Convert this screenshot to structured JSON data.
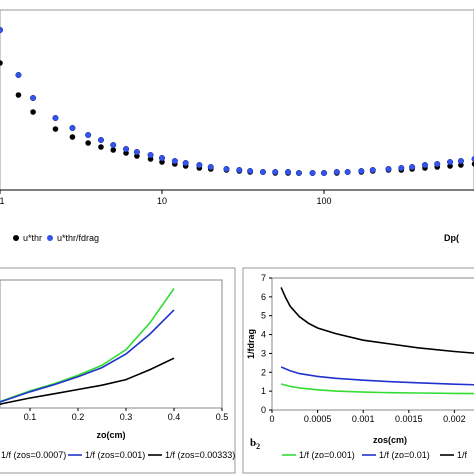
{
  "chart_data": [
    {
      "type": "scatter",
      "x_scale": "log",
      "xlabel": "Dp(",
      "ylabel": "",
      "title": "",
      "xlim": [
        1,
        1000
      ],
      "ylim": [
        0,
        1.8
      ],
      "x_ticks": [
        "1",
        "10",
        "100"
      ],
      "grid": false,
      "legend": "bottom-left",
      "series": [
        {
          "name": "u*thr",
          "color": "#000000",
          "points": [
            [
              1,
              1.27
            ],
            [
              1.3,
              0.95
            ],
            [
              1.6,
              0.78
            ],
            [
              2.2,
              0.61
            ],
            [
              2.8,
              0.53
            ],
            [
              3.5,
              0.47
            ],
            [
              4.2,
              0.43
            ],
            [
              5,
              0.4
            ],
            [
              6,
              0.37
            ],
            [
              7,
              0.34
            ],
            [
              8.5,
              0.31
            ],
            [
              10,
              0.28
            ],
            [
              12,
              0.26
            ],
            [
              14,
              0.24
            ],
            [
              17,
              0.22
            ],
            [
              20,
              0.21
            ],
            [
              25,
              0.2
            ],
            [
              30,
              0.19
            ],
            [
              35,
              0.18
            ],
            [
              42,
              0.18
            ],
            [
              50,
              0.17
            ],
            [
              60,
              0.17
            ],
            [
              70,
              0.17
            ],
            [
              85,
              0.17
            ],
            [
              100,
              0.17
            ],
            [
              120,
              0.17
            ],
            [
              140,
              0.18
            ],
            [
              170,
              0.18
            ],
            [
              200,
              0.19
            ],
            [
              250,
              0.2
            ],
            [
              300,
              0.2
            ],
            [
              350,
              0.21
            ],
            [
              420,
              0.22
            ],
            [
              500,
              0.23
            ],
            [
              600,
              0.24
            ],
            [
              700,
              0.25
            ],
            [
              850,
              0.26
            ],
            [
              1000,
              0.28
            ]
          ]
        },
        {
          "name": "u*thr/fdrag",
          "color": "#3355ee",
          "points": [
            [
              1,
              1.6
            ],
            [
              1.3,
              1.15
            ],
            [
              1.6,
              0.92
            ],
            [
              2.2,
              0.72
            ],
            [
              2.8,
              0.62
            ],
            [
              3.5,
              0.55
            ],
            [
              4.2,
              0.5
            ],
            [
              5,
              0.45
            ],
            [
              6,
              0.41
            ],
            [
              7,
              0.38
            ],
            [
              8.5,
              0.35
            ],
            [
              10,
              0.32
            ],
            [
              12,
              0.29
            ],
            [
              14,
              0.27
            ],
            [
              17,
              0.25
            ],
            [
              20,
              0.23
            ],
            [
              25,
              0.21
            ],
            [
              30,
              0.2
            ],
            [
              35,
              0.19
            ],
            [
              42,
              0.18
            ],
            [
              50,
              0.18
            ],
            [
              60,
              0.18
            ],
            [
              70,
              0.17
            ],
            [
              85,
              0.17
            ],
            [
              100,
              0.17
            ],
            [
              120,
              0.18
            ],
            [
              140,
              0.18
            ],
            [
              170,
              0.19
            ],
            [
              200,
              0.2
            ],
            [
              250,
              0.21
            ],
            [
              300,
              0.22
            ],
            [
              350,
              0.23
            ],
            [
              420,
              0.25
            ],
            [
              500,
              0.26
            ],
            [
              600,
              0.28
            ],
            [
              700,
              0.29
            ],
            [
              850,
              0.31
            ],
            [
              1000,
              0.33
            ]
          ]
        }
      ]
    },
    {
      "type": "line",
      "xlabel": "zo(cm)",
      "ylabel": "",
      "title": "",
      "xlim": [
        0,
        0.5
      ],
      "ylim": [
        0,
        4.5
      ],
      "x_ticks": [
        "0.1",
        "0.2",
        "0.3",
        "0.4",
        "0.5"
      ],
      "grid": false,
      "legend": "bottom",
      "series": [
        {
          "name": "1/f (zos=0.0007)",
          "color": "#33dd33",
          "x": [
            0,
            0.05,
            0.1,
            0.15,
            0.2,
            0.25,
            0.3,
            0.35,
            0.4
          ],
          "y": [
            0.0,
            0.3,
            0.6,
            0.85,
            1.15,
            1.5,
            2.05,
            3.0,
            4.2
          ]
        },
        {
          "name": "1/f (zos=0.001)",
          "color": "#2233cc",
          "x": [
            0,
            0.05,
            0.1,
            0.15,
            0.2,
            0.25,
            0.3,
            0.35,
            0.4
          ],
          "y": [
            0.0,
            0.28,
            0.57,
            0.82,
            1.1,
            1.42,
            1.9,
            2.6,
            3.45
          ]
        },
        {
          "name": "1/f (zos=0.00333)",
          "color": "#000000",
          "x": [
            0,
            0.05,
            0.1,
            0.15,
            0.2,
            0.25,
            0.3,
            0.35,
            0.4
          ],
          "y": [
            0.0,
            0.18,
            0.35,
            0.5,
            0.65,
            0.8,
            1.0,
            1.35,
            1.75
          ]
        }
      ]
    },
    {
      "type": "line",
      "label": "b2",
      "xlabel": "zos(cm)",
      "ylabel": "1/fdrag",
      "title": "",
      "xlim": [
        0,
        0.0025
      ],
      "ylim": [
        0,
        7
      ],
      "x_ticks": [
        "0",
        "0.0005",
        "0.001",
        "0.0015",
        "0.002"
      ],
      "y_ticks": [
        "0",
        "1",
        "2",
        "3",
        "4",
        "5",
        "6",
        "7"
      ],
      "grid": false,
      "legend": "bottom",
      "series": [
        {
          "name": "1/f (zo=0.001)",
          "color": "#33dd33",
          "x": [
            0.0001,
            0.0002,
            0.0003,
            0.0005,
            0.0007,
            0.001,
            0.0013,
            0.0016,
            0.002,
            0.0025
          ],
          "y": [
            1.38,
            1.25,
            1.17,
            1.07,
            1.0,
            0.95,
            0.92,
            0.9,
            0.88,
            0.86
          ]
        },
        {
          "name": "1/f (zo=0.01)",
          "color": "#2233cc",
          "x": [
            0.0001,
            0.0002,
            0.0003,
            0.0005,
            0.0007,
            0.001,
            0.0013,
            0.0016,
            0.002,
            0.0025
          ],
          "y": [
            2.28,
            2.08,
            1.93,
            1.78,
            1.68,
            1.58,
            1.5,
            1.44,
            1.37,
            1.3
          ]
        },
        {
          "name": "1/f",
          "color": "#000000",
          "x": [
            0.0001,
            0.00015,
            0.0002,
            0.0003,
            0.0004,
            0.0005,
            0.0007,
            0.001,
            0.0013,
            0.0016,
            0.002,
            0.0025
          ],
          "y": [
            6.5,
            5.95,
            5.5,
            4.95,
            4.6,
            4.35,
            4.05,
            3.7,
            3.5,
            3.3,
            3.1,
            2.9
          ]
        }
      ]
    }
  ]
}
